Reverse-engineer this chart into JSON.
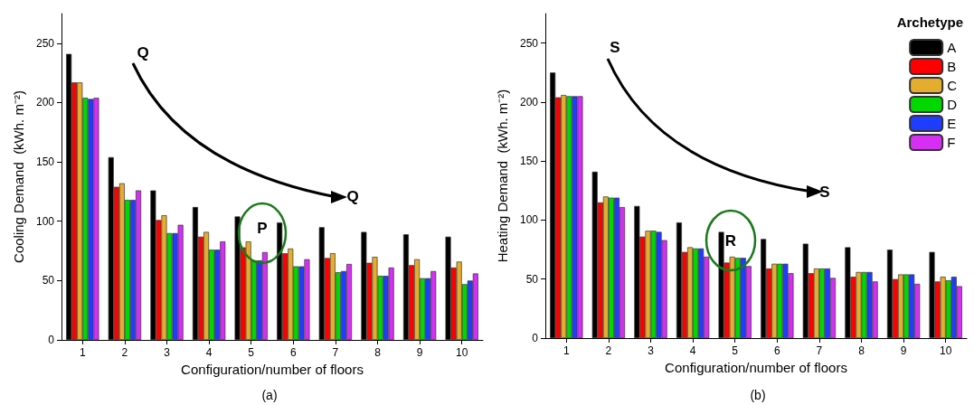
{
  "chart_data": [
    {
      "type": "bar",
      "xlabel": "Configuration/number of floors",
      "ylabel": "Cooling Demand  (kWh. m⁻²)",
      "categories": [
        "1",
        "2",
        "3",
        "4",
        "5",
        "6",
        "7",
        "8",
        "9",
        "10"
      ],
      "ylim": [
        0,
        275
      ],
      "yticks": [
        0,
        50,
        100,
        150,
        200,
        250
      ],
      "grid": false,
      "legend": false,
      "annotations": [
        "Q",
        "Q",
        "P",
        "(a)"
      ],
      "series": [
        {
          "color": "#000000",
          "values": [
            241,
            154,
            126,
            112,
            104,
            99,
            95,
            91,
            89,
            87
          ]
        },
        {
          "color": "#ff0000",
          "values": [
            217,
            129,
            101,
            87,
            78,
            73,
            69,
            65,
            63,
            61
          ]
        },
        {
          "color": "#e5ad2e",
          "values": [
            217,
            132,
            105,
            91,
            83,
            77,
            73,
            70,
            68,
            66
          ]
        },
        {
          "color": "#00d800",
          "values": [
            204,
            118,
            90,
            76,
            67,
            62,
            57,
            54,
            52,
            47
          ]
        },
        {
          "color": "#1f3dff",
          "values": [
            203,
            118,
            90,
            76,
            67,
            62,
            58,
            54,
            52,
            50
          ]
        },
        {
          "color": "#d42ff2",
          "values": [
            204,
            126,
            97,
            83,
            74,
            68,
            64,
            61,
            58,
            56
          ]
        }
      ]
    },
    {
      "type": "bar",
      "xlabel": "Configuration/number of floors",
      "ylabel": "Heating Demand  (kWh. m⁻²)",
      "categories": [
        "1",
        "2",
        "3",
        "4",
        "5",
        "6",
        "7",
        "8",
        "9",
        "10"
      ],
      "ylim": [
        0,
        275
      ],
      "yticks": [
        0,
        50,
        100,
        150,
        200,
        250
      ],
      "grid": false,
      "legend": "top right",
      "legend_title": "Archetype",
      "annotations": [
        "S",
        "S",
        "R",
        "(b)"
      ],
      "series": [
        {
          "name": "A",
          "color": "#000000",
          "values": [
            225,
            141,
            112,
            98,
            90,
            84,
            80,
            77,
            75,
            73
          ]
        },
        {
          "name": "B",
          "color": "#ff0000",
          "values": [
            204,
            115,
            86,
            73,
            64,
            59,
            55,
            52,
            50,
            48
          ]
        },
        {
          "name": "C",
          "color": "#e5ad2e",
          "values": [
            206,
            120,
            91,
            77,
            69,
            63,
            59,
            56,
            54,
            52
          ]
        },
        {
          "name": "D",
          "color": "#00d800",
          "values": [
            205,
            119,
            91,
            76,
            68,
            63,
            59,
            56,
            54,
            49
          ]
        },
        {
          "name": "E",
          "color": "#1f3dff",
          "values": [
            205,
            119,
            90,
            76,
            68,
            63,
            59,
            56,
            54,
            52
          ]
        },
        {
          "name": "F",
          "color": "#d42ff2",
          "values": [
            205,
            111,
            83,
            69,
            61,
            55,
            51,
            48,
            46,
            44
          ]
        }
      ]
    }
  ]
}
